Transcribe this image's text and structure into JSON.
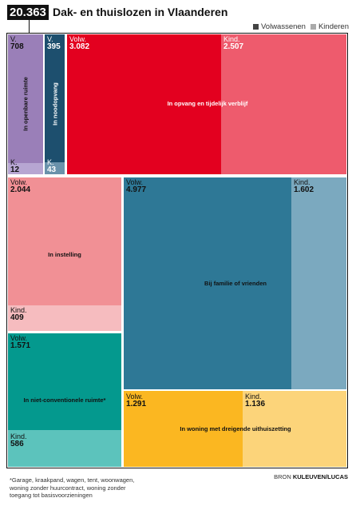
{
  "header": {
    "total": "20.363",
    "title": "Dak- en thuislozen in Vlaanderen"
  },
  "legend": [
    {
      "label": "Volwassenen",
      "color": "#444444"
    },
    {
      "label": "Kinderen",
      "color": "#aaaaaa"
    }
  ],
  "chart_data": {
    "type": "treemap",
    "series": [
      {
        "name": "Volwassenen"
      },
      {
        "name": "Kinderen"
      }
    ],
    "categories": [
      {
        "name": "In openbare ruimte",
        "adult_label": "V.",
        "adults": "708",
        "child_label": "K.",
        "children": "12",
        "adult_color": "#9a7fb8",
        "child_color": "#b7a6d2"
      },
      {
        "name": "In noodopvang",
        "adult_label": "V.",
        "adults": "395",
        "child_label": "K.",
        "children": "43",
        "adult_color": "#1d4f6e",
        "child_color": "#6a92ab"
      },
      {
        "name": "In opvang en tijdelijk verblijf",
        "adult_label": "Volw.",
        "adults": "3.082",
        "child_label": "Kind.",
        "children": "2.507",
        "adult_color": "#e3001f",
        "child_color": "#ee5b6d"
      },
      {
        "name": "In instelling",
        "adult_label": "Volw.",
        "adults": "2.044",
        "child_label": "Kind.",
        "children": "409",
        "adult_color": "#f19095",
        "child_color": "#f6bcbf"
      },
      {
        "name": "Bij familie of vrienden",
        "adult_label": "Volw.",
        "adults": "4.977",
        "child_label": "Kind.",
        "children": "1.602",
        "adult_color": "#2e7896",
        "child_color": "#7ba9bf"
      },
      {
        "name": "In niet-conventionele ruimte*",
        "adult_label": "Volw.",
        "adults": "1.571",
        "child_label": "Kind.",
        "children": "586",
        "adult_color": "#04998e",
        "child_color": "#5cc3bc"
      },
      {
        "name": "In woning met dreigende uithuiszetting",
        "adult_label": "Volw.",
        "adults": "1.291",
        "child_label": "Kind.",
        "children": "1.136",
        "adult_color": "#fbb721",
        "child_color": "#fcd47a"
      }
    ]
  },
  "footnote": "*Garage, kraakpand, wagen, tent, woonwagen, woning zonder huurcontract, woning zonder toegang tot basisvoorzieningen",
  "source": {
    "prefix": "BRON",
    "name": "KULEUVEN/LUCAS"
  }
}
